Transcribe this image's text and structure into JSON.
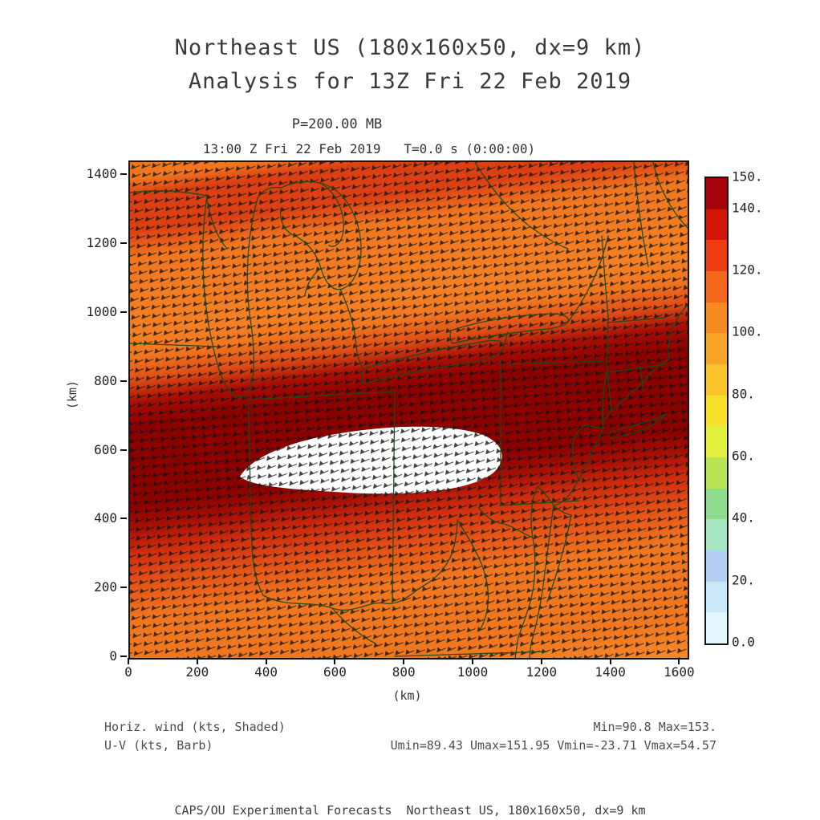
{
  "title": {
    "line1": "Northeast US (180x160x50, dx=9 km)",
    "line2": "Analysis for 13Z Fri 22 Feb 2019"
  },
  "subtitle": {
    "pressure": "P=200.00 MB",
    "valid_time": "13:00 Z Fri 22 Feb 2019   T=0.0 s (0:00:00)"
  },
  "axes": {
    "x": {
      "label": "(km)",
      "range_km": [
        0,
        1620
      ],
      "ticks": [
        {
          "v": 0,
          "t": "0"
        },
        {
          "v": 200,
          "t": "200"
        },
        {
          "v": 400,
          "t": "400"
        },
        {
          "v": 600,
          "t": "600"
        },
        {
          "v": 800,
          "t": "800"
        },
        {
          "v": 1000,
          "t": "1000"
        },
        {
          "v": 1200,
          "t": "1200"
        },
        {
          "v": 1400,
          "t": "1400"
        },
        {
          "v": 1600,
          "t": "1600"
        }
      ]
    },
    "y": {
      "label": "(km)",
      "range_km": [
        0,
        1440
      ],
      "ticks": [
        {
          "v": 0,
          "t": "0"
        },
        {
          "v": 200,
          "t": "200"
        },
        {
          "v": 400,
          "t": "400"
        },
        {
          "v": 600,
          "t": "600"
        },
        {
          "v": 800,
          "t": "800"
        },
        {
          "v": 1000,
          "t": "1000"
        },
        {
          "v": 1200,
          "t": "1200"
        },
        {
          "v": 1400,
          "t": "1400"
        }
      ]
    }
  },
  "colorbar": {
    "units": "kts",
    "min": 0,
    "max": 150,
    "segment_colors": [
      "#e4f6fd",
      "#c9e9f8",
      "#b3d0f2",
      "#a7e6c2",
      "#8fdc8f",
      "#b8e455",
      "#e2ef3d",
      "#f6e02c",
      "#f9c32b",
      "#f8a526",
      "#f68a20",
      "#f4661a",
      "#ee3c11",
      "#d31708",
      "#a50309"
    ],
    "labels": [
      {
        "v": 150,
        "t": "150."
      },
      {
        "v": 140,
        "t": "140."
      },
      {
        "v": 120,
        "t": "120."
      },
      {
        "v": 100,
        "t": "100."
      },
      {
        "v": 80,
        "t": "80."
      },
      {
        "v": 60,
        "t": "60."
      },
      {
        "v": 40,
        "t": "40."
      },
      {
        "v": 20,
        "t": "20."
      },
      {
        "v": 0,
        "t": "0.0"
      }
    ]
  },
  "annotations": {
    "shaded_label": "Horiz. wind (kts, Shaded)",
    "barb_label": "U-V (kts, Barb)",
    "minmax": "Min=90.8 Max=153.",
    "uv_stats": "Umin=89.43 Umax=151.95 Vmin=-23.71 Vmax=54.57"
  },
  "footer": {
    "text": "CAPS/OU Experimental Forecasts  Northeast US, 180x160x50, dx=9 km"
  },
  "chart_data": {
    "type": "heatmap",
    "title": "Northeast US (180x160x50, dx=9 km) — Analysis for 13Z Fri 22 Feb 2019",
    "field": "Horizontal wind speed (kts, shaded) with U-V wind barbs (kts) at P=200.00 MB",
    "valid_time": "13:00 Z Fri 22 Feb 2019, T=0.0 s (0:00:00)",
    "xlabel": "(km)",
    "ylabel": "(km)",
    "xlim": [
      0,
      1620
    ],
    "ylim": [
      0,
      1440
    ],
    "x_ticks": [
      0,
      200,
      400,
      600,
      800,
      1000,
      1200,
      1400,
      1600
    ],
    "y_ticks": [
      0,
      200,
      400,
      600,
      800,
      1000,
      1200,
      1400
    ],
    "colorbar_levels": [
      0,
      10,
      20,
      30,
      40,
      50,
      60,
      70,
      80,
      90,
      100,
      110,
      120,
      130,
      140,
      150
    ],
    "colorbar_colors": [
      "#e4f6fd",
      "#c9e9f8",
      "#b3d0f2",
      "#a7e6c2",
      "#8fdc8f",
      "#b8e455",
      "#e2ef3d",
      "#f6e02c",
      "#f9c32b",
      "#f8a526",
      "#f68a20",
      "#f4661a",
      "#ee3c11",
      "#d31708",
      "#a50309"
    ],
    "stats": {
      "min": 90.8,
      "max": 153.0,
      "umin": 89.43,
      "umax": 151.95,
      "vmin": -23.71,
      "vmax": 54.57
    },
    "grid": false,
    "legend_position": "right-colorbar",
    "features": [
      {
        "desc": "jet streak core > 150 kts shown as white blob",
        "x_km": [
          320,
          1095
        ],
        "y_km": [
          480,
          680
        ]
      },
      {
        "desc": "broad 130-150 kts dark-red band crossing domain WSW-ENE",
        "y_km_left": [
          280,
          780
        ],
        "y_km_right": [
          470,
          1020
        ]
      },
      {
        "desc": "secondary 120-130 kts red band near top of domain",
        "y_km": [
          1190,
          1330
        ]
      },
      {
        "desc": "background 90-120 kts orange shading elsewhere; westerly wind barbs throughout"
      }
    ]
  }
}
